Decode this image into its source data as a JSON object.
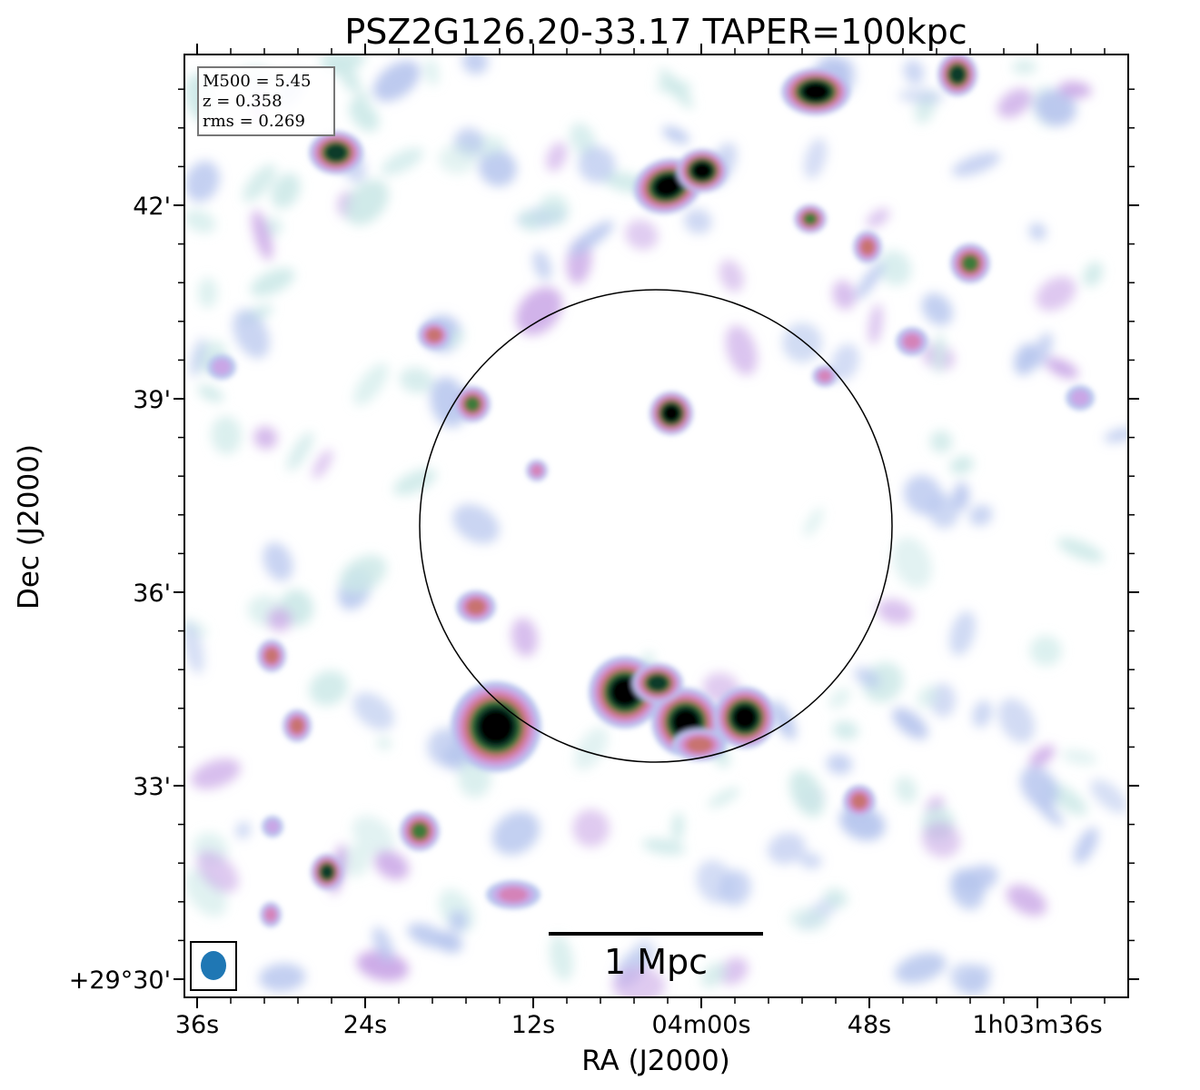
{
  "chart_data": {
    "type": "heatmap",
    "title": "PSZ2G126.20-33.17 TAPER=100kpc",
    "xlabel": "RA (J2000)",
    "ylabel": "Dec (J2000)",
    "x_ticks": [
      "36s",
      "24s",
      "12s",
      "04m00s",
      "48s",
      "1h03m36s"
    ],
    "y_ticks": [
      "+29°30'",
      "33'",
      "36'",
      "39'",
      "42'"
    ],
    "info": {
      "m500": "M500 = 5.45",
      "z": "z = 0.358",
      "rms": "rms = 0.269"
    },
    "scale_bar_label": "1 Mpc",
    "colormap": [
      "#ffffff",
      "#cde9e8",
      "#b7c6ee",
      "#c9a6e6",
      "#d483b8",
      "#c8736f",
      "#3c7a3a",
      "#0f3a2a",
      "#000000"
    ],
    "circle_color": "#000000",
    "beam_color": "#1f77b4"
  }
}
